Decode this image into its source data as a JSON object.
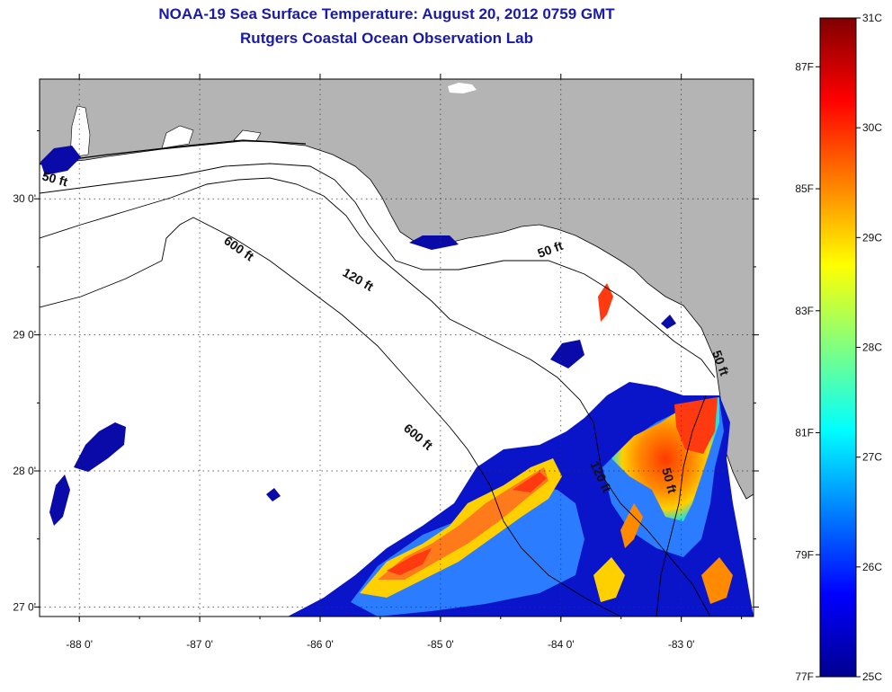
{
  "header": {
    "title": "NOAA-19 Sea Surface Temperature:  August 20, 2012 0759 GMT",
    "subtitle": "Rutgers Coastal Ocean Observation Lab"
  },
  "map": {
    "lon_range": [
      -88.33,
      -82.4
    ],
    "lat_range": [
      26.93,
      30.88
    ],
    "lon_ticks": [
      {
        "value": -88,
        "label": "-88 0'"
      },
      {
        "value": -87,
        "label": "-87 0'"
      },
      {
        "value": -86,
        "label": "-86 0'"
      },
      {
        "value": -85,
        "label": "-85 0'"
      },
      {
        "value": -84,
        "label": "-84 0'"
      },
      {
        "value": -83,
        "label": "-83 0'"
      }
    ],
    "lat_ticks": [
      {
        "value": 30,
        "label": "30 0'"
      },
      {
        "value": 29,
        "label": "29 0'"
      },
      {
        "value": 28,
        "label": "28 0'"
      },
      {
        "value": 27,
        "label": "27 0'"
      }
    ],
    "grid": "dotted",
    "land_color": "#b4b4b4",
    "no_data_color": "#ffffff",
    "contour_labels": [
      "50 ft",
      "600 ft",
      "120 ft",
      "50 ft",
      "600 ft",
      "120 ft",
      "50 ft",
      "50 ft"
    ]
  },
  "colorbar": {
    "celsius": [
      "31C",
      "30C",
      "29C",
      "28C",
      "27C",
      "26C",
      "25C"
    ],
    "fahrenheit": [
      "87F",
      "85F",
      "83F",
      "81F",
      "79F",
      "77F"
    ],
    "range_c": [
      25,
      31
    ],
    "colormap": "jet"
  }
}
